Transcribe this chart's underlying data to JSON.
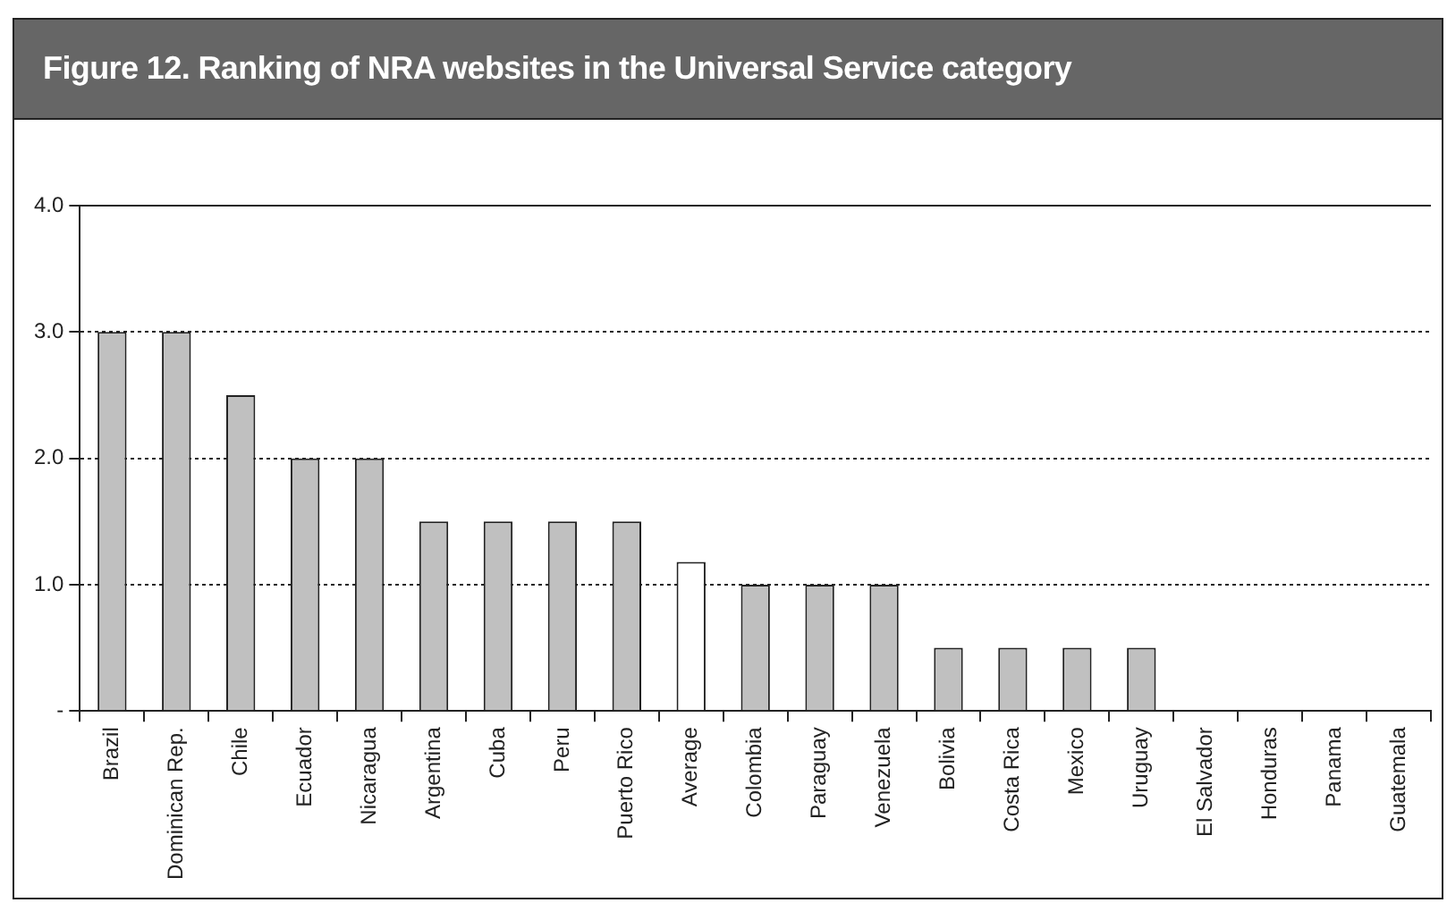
{
  "chart_data": {
    "type": "bar",
    "title": "Figure 12. Ranking of NRA websites in the Universal Service category",
    "categories": [
      "Brazil",
      "Dominican Rep.",
      "Chile",
      "Ecuador",
      "Nicaragua",
      "Argentina",
      "Cuba",
      "Peru",
      "Puerto Rico",
      "Average",
      "Colombia",
      "Paraguay",
      "Venezuela",
      "Bolivia",
      "Costa Rica",
      "Mexico",
      "Uruguay",
      "El Salvador",
      "Honduras",
      "Panama",
      "Guatemala"
    ],
    "values": [
      3,
      3,
      2.5,
      2,
      2,
      1.5,
      1.5,
      1.5,
      1.5,
      1.18,
      1,
      1,
      1,
      0.5,
      0.5,
      0.5,
      0.5,
      0,
      0,
      0,
      0
    ],
    "colors": [
      "#c0c0c0",
      "#c0c0c0",
      "#c0c0c0",
      "#c0c0c0",
      "#c0c0c0",
      "#c0c0c0",
      "#c0c0c0",
      "#c0c0c0",
      "#c0c0c0",
      "#ffffff",
      "#c0c0c0",
      "#c0c0c0",
      "#c0c0c0",
      "#c0c0c0",
      "#c0c0c0",
      "#c0c0c0",
      "#c0c0c0",
      "#c0c0c0",
      "#c0c0c0",
      "#c0c0c0",
      "#c0c0c0"
    ],
    "ylim": [
      0,
      4
    ],
    "yticks": [
      {
        "value": 0,
        "label": "-"
      },
      {
        "value": 1,
        "label": "1.0"
      },
      {
        "value": 2,
        "label": "2.0"
      },
      {
        "value": 3,
        "label": "3.0"
      },
      {
        "value": 4,
        "label": "4.0"
      }
    ],
    "grid": "y"
  }
}
